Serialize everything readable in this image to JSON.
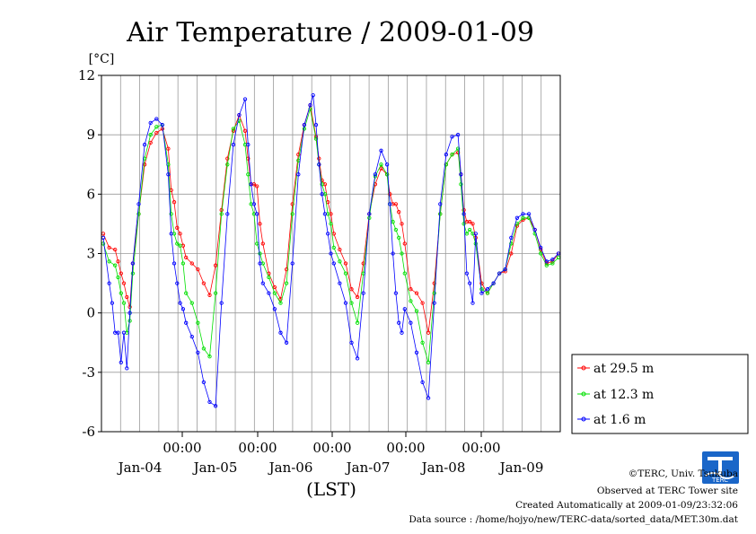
{
  "chart_data": {
    "type": "line",
    "title": "Air Temperature / 2009-01-09",
    "ylabel": "[°C]",
    "xlabel": "(LST)",
    "ylim": [
      -6,
      12
    ],
    "yticks": [
      -6,
      -3,
      0,
      3,
      6,
      9,
      12
    ],
    "time_ticks": [
      "00:00",
      "00:00",
      "00:00",
      "00:00",
      "00:00"
    ],
    "date_ticks": [
      "Jan-04",
      "Jan-05",
      "Jan-06",
      "Jan-07",
      "Jan-08",
      "Jan-09"
    ],
    "grid": true,
    "legend_position": "right",
    "colors": {
      "red": "#ff0000",
      "green": "#00e000",
      "blue": "#0000ff"
    },
    "series": [
      {
        "name": "at 29.5 m",
        "color": "#ff0000",
        "points": [
          [
            0,
            4.0
          ],
          [
            1,
            3.3
          ],
          [
            2,
            3.2
          ],
          [
            2.5,
            2.6
          ],
          [
            3,
            2.0
          ],
          [
            3.5,
            1.5
          ],
          [
            4,
            0.8
          ],
          [
            4.5,
            0.3
          ],
          [
            5,
            2.5
          ],
          [
            6,
            5.0
          ],
          [
            7,
            7.5
          ],
          [
            8,
            8.6
          ],
          [
            9,
            9.1
          ],
          [
            10,
            9.3
          ],
          [
            11,
            8.3
          ],
          [
            11.5,
            6.2
          ],
          [
            12,
            5.6
          ],
          [
            12.5,
            4.3
          ],
          [
            13,
            4.0
          ],
          [
            13.5,
            3.4
          ],
          [
            14,
            2.8
          ],
          [
            15,
            2.5
          ],
          [
            16,
            2.2
          ],
          [
            17,
            1.5
          ],
          [
            18,
            0.9
          ],
          [
            19,
            2.4
          ],
          [
            20,
            5.2
          ],
          [
            21,
            7.8
          ],
          [
            22,
            9.2
          ],
          [
            23,
            10.0
          ],
          [
            24,
            9.2
          ],
          [
            24.5,
            7.8
          ],
          [
            25,
            6.5
          ],
          [
            25.5,
            6.5
          ],
          [
            26,
            6.4
          ],
          [
            26.5,
            4.5
          ],
          [
            27,
            3.5
          ],
          [
            28,
            2.0
          ],
          [
            29,
            1.3
          ],
          [
            30,
            0.7
          ],
          [
            31,
            2.2
          ],
          [
            32,
            5.5
          ],
          [
            33,
            8.0
          ],
          [
            34,
            9.5
          ],
          [
            35,
            10.5
          ],
          [
            36,
            8.9
          ],
          [
            36.5,
            7.8
          ],
          [
            37,
            6.7
          ],
          [
            37.5,
            6.5
          ],
          [
            38,
            5.6
          ],
          [
            38.5,
            5.0
          ],
          [
            39,
            4.0
          ],
          [
            40,
            3.2
          ],
          [
            41,
            2.5
          ],
          [
            42,
            1.2
          ],
          [
            43,
            0.8
          ],
          [
            44,
            2.5
          ],
          [
            45,
            5.0
          ],
          [
            46,
            6.5
          ],
          [
            47,
            7.3
          ],
          [
            48,
            7.0
          ],
          [
            48.5,
            6.0
          ],
          [
            49,
            5.5
          ],
          [
            49.5,
            5.5
          ],
          [
            50,
            5.1
          ],
          [
            50.5,
            4.5
          ],
          [
            51,
            3.5
          ],
          [
            52,
            1.2
          ],
          [
            53,
            1.0
          ],
          [
            54,
            0.5
          ],
          [
            55,
            -1.0
          ],
          [
            56,
            1.5
          ],
          [
            57,
            5.0
          ],
          [
            58,
            7.5
          ],
          [
            59,
            8.0
          ],
          [
            60,
            8.1
          ],
          [
            60.5,
            7.0
          ],
          [
            61,
            5.2
          ],
          [
            61.5,
            4.6
          ],
          [
            62,
            4.6
          ],
          [
            62.5,
            4.5
          ],
          [
            63,
            3.8
          ],
          [
            64,
            1.5
          ],
          [
            65,
            1.0
          ],
          [
            66,
            1.5
          ],
          [
            67,
            2.0
          ],
          [
            68,
            2.1
          ],
          [
            69,
            3.0
          ],
          [
            70,
            4.4
          ],
          [
            71,
            4.7
          ],
          [
            72,
            4.8
          ],
          [
            73,
            4.2
          ],
          [
            74,
            3.2
          ],
          [
            75,
            2.5
          ],
          [
            76,
            2.6
          ],
          [
            77,
            3.0
          ]
        ]
      },
      {
        "name": "at 12.3 m",
        "color": "#00e000",
        "points": [
          [
            0,
            3.5
          ],
          [
            1,
            2.6
          ],
          [
            2,
            2.4
          ],
          [
            2.5,
            1.8
          ],
          [
            3,
            1.0
          ],
          [
            3.5,
            0.5
          ],
          [
            4,
            -1.0
          ],
          [
            4.5,
            -0.4
          ],
          [
            5,
            2.0
          ],
          [
            6,
            5.0
          ],
          [
            7,
            7.8
          ],
          [
            8,
            9.0
          ],
          [
            9,
            9.4
          ],
          [
            10,
            9.5
          ],
          [
            11,
            7.5
          ],
          [
            11.5,
            5.0
          ],
          [
            12,
            4.0
          ],
          [
            12.5,
            3.5
          ],
          [
            13,
            3.4
          ],
          [
            13.5,
            2.5
          ],
          [
            14,
            1.0
          ],
          [
            15,
            0.5
          ],
          [
            16,
            -0.5
          ],
          [
            17,
            -1.8
          ],
          [
            18,
            -2.2
          ],
          [
            19,
            1.0
          ],
          [
            20,
            5.0
          ],
          [
            21,
            7.5
          ],
          [
            22,
            9.3
          ],
          [
            23,
            9.7
          ],
          [
            24,
            8.5
          ],
          [
            24.5,
            7.0
          ],
          [
            25,
            5.5
          ],
          [
            25.5,
            5.0
          ],
          [
            26,
            3.5
          ],
          [
            26.5,
            3.0
          ],
          [
            27,
            2.5
          ],
          [
            28,
            1.8
          ],
          [
            29,
            1.0
          ],
          [
            30,
            0.5
          ],
          [
            31,
            1.5
          ],
          [
            32,
            5.0
          ],
          [
            33,
            7.7
          ],
          [
            34,
            9.3
          ],
          [
            35,
            10.3
          ],
          [
            36,
            8.8
          ],
          [
            36.5,
            7.5
          ],
          [
            37,
            6.5
          ],
          [
            37.5,
            6.0
          ],
          [
            38,
            5.0
          ],
          [
            38.5,
            4.5
          ],
          [
            39,
            3.3
          ],
          [
            40,
            2.6
          ],
          [
            41,
            2.0
          ],
          [
            42,
            0.5
          ],
          [
            43,
            -0.5
          ],
          [
            44,
            2.0
          ],
          [
            45,
            4.8
          ],
          [
            46,
            6.9
          ],
          [
            47,
            7.5
          ],
          [
            48,
            7.0
          ],
          [
            48.5,
            5.5
          ],
          [
            49,
            4.6
          ],
          [
            49.5,
            4.2
          ],
          [
            50,
            3.8
          ],
          [
            50.5,
            3.0
          ],
          [
            51,
            2.0
          ],
          [
            52,
            0.6
          ],
          [
            53,
            0.1
          ],
          [
            54,
            -1.5
          ],
          [
            55,
            -2.5
          ],
          [
            56,
            1.0
          ],
          [
            57,
            5.0
          ],
          [
            58,
            7.5
          ],
          [
            59,
            8.0
          ],
          [
            60,
            8.3
          ],
          [
            60.5,
            6.5
          ],
          [
            61,
            4.5
          ],
          [
            61.5,
            4.0
          ],
          [
            62,
            4.2
          ],
          [
            62.5,
            4.0
          ],
          [
            63,
            3.5
          ],
          [
            64,
            1.2
          ],
          [
            65,
            1.0
          ],
          [
            66,
            1.5
          ],
          [
            67,
            2.0
          ],
          [
            68,
            2.2
          ],
          [
            69,
            3.5
          ],
          [
            70,
            4.5
          ],
          [
            71,
            4.8
          ],
          [
            72,
            4.8
          ],
          [
            73,
            4.0
          ],
          [
            74,
            3.0
          ],
          [
            75,
            2.4
          ],
          [
            76,
            2.5
          ],
          [
            77,
            2.8
          ]
        ]
      },
      {
        "name": "at 1.6 m",
        "color": "#0000ff",
        "points": [
          [
            0,
            3.8
          ],
          [
            1,
            1.5
          ],
          [
            1.5,
            0.5
          ],
          [
            2,
            -1.0
          ],
          [
            2.5,
            -1.0
          ],
          [
            3,
            -2.5
          ],
          [
            3.5,
            -1.0
          ],
          [
            4,
            -2.8
          ],
          [
            4.5,
            0.0
          ],
          [
            5,
            2.5
          ],
          [
            6,
            5.5
          ],
          [
            7,
            8.5
          ],
          [
            8,
            9.6
          ],
          [
            9,
            9.8
          ],
          [
            10,
            9.5
          ],
          [
            11,
            7.0
          ],
          [
            11.5,
            4.0
          ],
          [
            12,
            2.5
          ],
          [
            12.5,
            1.5
          ],
          [
            13,
            0.5
          ],
          [
            13.5,
            0.2
          ],
          [
            14,
            -0.5
          ],
          [
            15,
            -1.2
          ],
          [
            16,
            -2.0
          ],
          [
            17,
            -3.5
          ],
          [
            18,
            -4.5
          ],
          [
            19,
            -4.7
          ],
          [
            20,
            0.5
          ],
          [
            21,
            5.0
          ],
          [
            22,
            8.5
          ],
          [
            23,
            10.0
          ],
          [
            24,
            10.8
          ],
          [
            24.5,
            8.5
          ],
          [
            25,
            6.5
          ],
          [
            25.5,
            5.5
          ],
          [
            26,
            5.0
          ],
          [
            26.5,
            2.5
          ],
          [
            27,
            1.5
          ],
          [
            28,
            1.0
          ],
          [
            29,
            0.2
          ],
          [
            30,
            -1.0
          ],
          [
            31,
            -1.5
          ],
          [
            32,
            2.5
          ],
          [
            33,
            7.0
          ],
          [
            34,
            9.5
          ],
          [
            35,
            10.5
          ],
          [
            35.5,
            11.0
          ],
          [
            36,
            9.5
          ],
          [
            36.5,
            7.5
          ],
          [
            37,
            6.0
          ],
          [
            37.5,
            5.0
          ],
          [
            38,
            4.0
          ],
          [
            38.5,
            3.0
          ],
          [
            39,
            2.5
          ],
          [
            40,
            1.5
          ],
          [
            41,
            0.5
          ],
          [
            42,
            -1.5
          ],
          [
            43,
            -2.3
          ],
          [
            44,
            1.0
          ],
          [
            45,
            5.0
          ],
          [
            46,
            7.0
          ],
          [
            47,
            8.2
          ],
          [
            48,
            7.5
          ],
          [
            48.5,
            5.5
          ],
          [
            49,
            3.0
          ],
          [
            49.5,
            1.0
          ],
          [
            50,
            -0.5
          ],
          [
            50.5,
            -1.0
          ],
          [
            51,
            0.2
          ],
          [
            52,
            -0.5
          ],
          [
            53,
            -2.0
          ],
          [
            54,
            -3.5
          ],
          [
            55,
            -4.3
          ],
          [
            56,
            0.5
          ],
          [
            57,
            5.5
          ],
          [
            58,
            8.0
          ],
          [
            59,
            8.9
          ],
          [
            60,
            9.0
          ],
          [
            60.5,
            7.0
          ],
          [
            61,
            5.0
          ],
          [
            61.5,
            2.0
          ],
          [
            62,
            1.5
          ],
          [
            62.5,
            0.5
          ],
          [
            63,
            4.0
          ],
          [
            64,
            1.0
          ],
          [
            65,
            1.2
          ],
          [
            66,
            1.5
          ],
          [
            67,
            2.0
          ],
          [
            68,
            2.2
          ],
          [
            69,
            3.8
          ],
          [
            70,
            4.8
          ],
          [
            71,
            5.0
          ],
          [
            72,
            5.0
          ],
          [
            73,
            4.2
          ],
          [
            74,
            3.3
          ],
          [
            75,
            2.6
          ],
          [
            76,
            2.7
          ],
          [
            77,
            3.0
          ]
        ]
      }
    ],
    "credits": [
      "©TERC, Univ. Tsukuba",
      "Observed at TERC Tower site",
      "Created Automatically at 2009-01-09/23:32:06",
      "Data source : /home/hojyo/new/TERC-data/sorted_data/MET.30m.dat"
    ],
    "logo_text": "TERC"
  }
}
